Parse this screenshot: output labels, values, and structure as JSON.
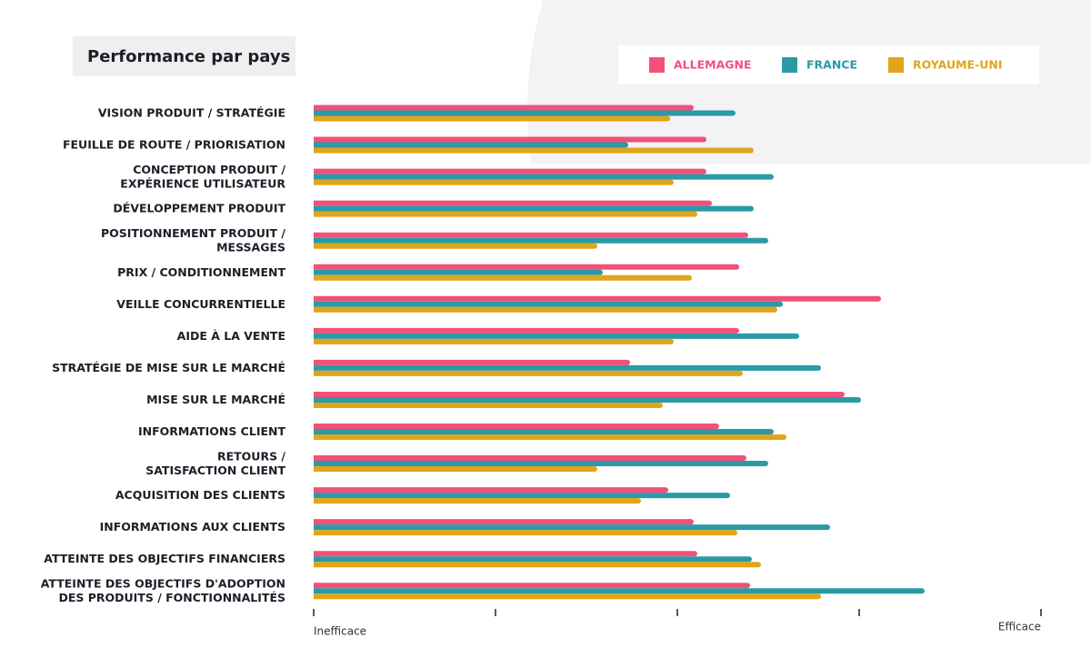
{
  "chart_data": {
    "type": "barh",
    "title": "Performance par pays",
    "categories": [
      [
        "VISION PRODUIT / STRATÉGIE"
      ],
      [
        "FEUILLE DE ROUTE / PRIORISATION"
      ],
      [
        "CONCEPTION PRODUIT /",
        "EXPÉRIENCE UTILISATEUR"
      ],
      [
        "DÉVELOPPEMENT PRODUIT"
      ],
      [
        "POSITIONNEMENT PRODUIT /",
        "MESSAGES"
      ],
      [
        "PRIX / CONDITIONNEMENT"
      ],
      [
        "VEILLE CONCURRENTIELLE"
      ],
      [
        "AIDE À LA VENTE"
      ],
      [
        "STRATÉGIE DE MISE SUR LE MARCHÉ"
      ],
      [
        "MISE SUR LE MARCHÉ"
      ],
      [
        "INFORMATIONS CLIENT"
      ],
      [
        "RETOURS /",
        "SATISFACTION CLIENT"
      ],
      [
        "ACQUISITION DES CLIENTS"
      ],
      [
        "INFORMATIONS AUX CLIENTS"
      ],
      [
        "ATTEINTE DES OBJECTIFS FINANCIERS"
      ],
      [
        "ATTEINTE DES OBJECTIFS D'ADOPTION",
        "DES PRODUITS / FONCTIONNALITÉS"
      ]
    ],
    "series": [
      {
        "name": "ALLEMAGNE",
        "color": "#f2507b",
        "values": [
          2.09,
          2.16,
          2.16,
          2.19,
          2.39,
          2.34,
          3.12,
          2.34,
          1.74,
          2.92,
          2.23,
          2.38,
          1.95,
          2.09,
          2.11,
          2.4
        ]
      },
      {
        "name": "FRANCE",
        "color": "#2a9aa6",
        "values": [
          2.32,
          1.73,
          2.53,
          2.42,
          2.5,
          1.59,
          2.58,
          2.67,
          2.79,
          3.01,
          2.53,
          2.5,
          2.29,
          2.84,
          2.41,
          3.36
        ]
      },
      {
        "name": "ROYAUME-UNI",
        "color": "#e0a51b",
        "values": [
          1.96,
          2.42,
          1.98,
          2.11,
          1.56,
          2.08,
          2.55,
          1.98,
          2.36,
          1.92,
          2.6,
          1.56,
          1.8,
          2.33,
          2.46,
          2.79
        ]
      }
    ],
    "xlim": [
      0,
      4
    ],
    "xticks": [
      0,
      1,
      2,
      3,
      4
    ],
    "x_axis_labels": {
      "low": "Inefficace",
      "high": "Efficace"
    },
    "legend": "top-right"
  }
}
